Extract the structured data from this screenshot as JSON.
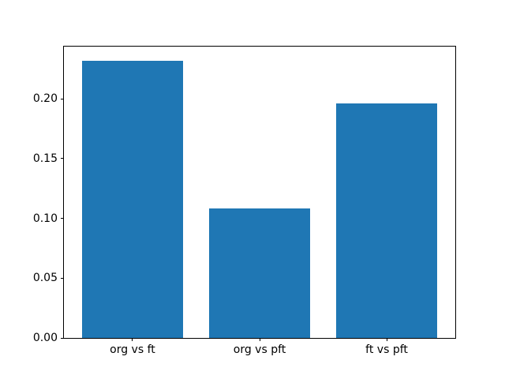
{
  "figure": {
    "background_color": "#ffffff",
    "spine_color": "#000000",
    "tick_text_color": "#000000",
    "bar_color": "#1f77b4"
  },
  "chart_data": {
    "type": "bar",
    "title": "",
    "xlabel": "",
    "ylabel": "",
    "categories": [
      "org vs ft",
      "org vs pft",
      "ft vs pft"
    ],
    "values": [
      0.232,
      0.108,
      0.196
    ],
    "bar_width": 0.8,
    "xlim": [
      -0.54,
      2.54
    ],
    "ylim": [
      0,
      0.2436
    ],
    "yticks": [
      0.0,
      0.05,
      0.1,
      0.15,
      0.2
    ],
    "ytick_labels": [
      "0.00",
      "0.05",
      "0.10",
      "0.15",
      "0.20"
    ],
    "grid": false,
    "legend": null
  }
}
